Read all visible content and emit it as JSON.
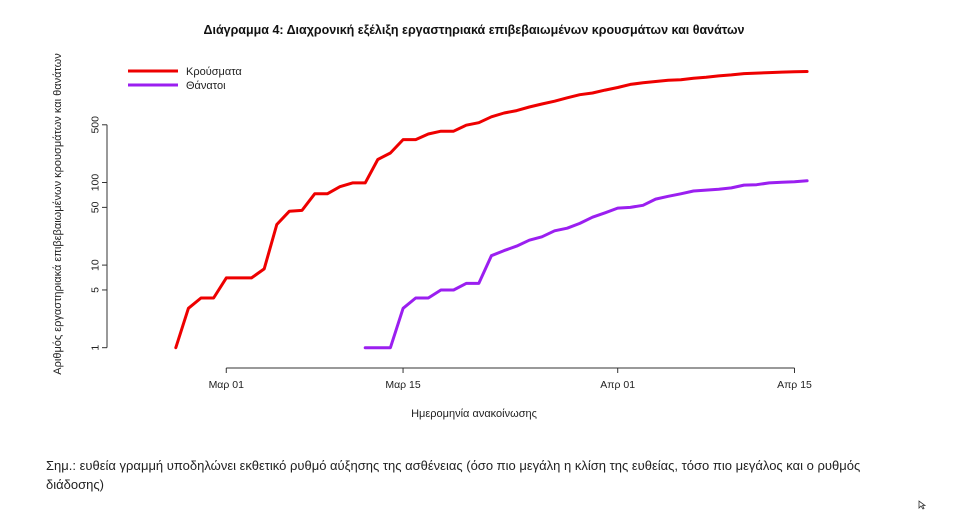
{
  "chart_data": {
    "type": "line",
    "title": "Διάγραμμα 4: Διαχρονική εξέλιξη εργαστηριακά επιβεβαιωμένων κρουσμάτων και θανάτων",
    "xlabel": "Ημερομηνία ανακοίνωσης",
    "ylabel": "Αριθμός εργαστηριακά επιβεβαιωμένων κρουσμάτων και θανάτων",
    "y_scale": "log",
    "ylim": [
      0.6,
      3500
    ],
    "xlim": [
      "2020-02-20",
      "2020-04-19"
    ],
    "x_ticks": [
      {
        "date": "2020-03-01",
        "label": "Μαρ 01"
      },
      {
        "date": "2020-03-15",
        "label": "Μαρ 15"
      },
      {
        "date": "2020-04-01",
        "label": "Απρ 01"
      },
      {
        "date": "2020-04-15",
        "label": "Απρ 15"
      }
    ],
    "y_ticks": [
      {
        "value": 1,
        "label": "1"
      },
      {
        "value": 5,
        "label": "5"
      },
      {
        "value": 10,
        "label": "10"
      },
      {
        "value": 50,
        "label": "50"
      },
      {
        "value": 100,
        "label": "100"
      },
      {
        "value": 500,
        "label": "500"
      }
    ],
    "grid": false,
    "legend_position": "top-left",
    "series": [
      {
        "name": "Κρούσματα",
        "color": "#ee0000",
        "x": [
          "2020-02-26",
          "2020-02-27",
          "2020-02-28",
          "2020-02-29",
          "2020-03-01",
          "2020-03-02",
          "2020-03-03",
          "2020-03-04",
          "2020-03-05",
          "2020-03-06",
          "2020-03-07",
          "2020-03-08",
          "2020-03-09",
          "2020-03-10",
          "2020-03-11",
          "2020-03-12",
          "2020-03-13",
          "2020-03-14",
          "2020-03-15",
          "2020-03-16",
          "2020-03-17",
          "2020-03-18",
          "2020-03-19",
          "2020-03-20",
          "2020-03-21",
          "2020-03-22",
          "2020-03-23",
          "2020-03-24",
          "2020-03-25",
          "2020-03-26",
          "2020-03-27",
          "2020-03-28",
          "2020-03-29",
          "2020-03-30",
          "2020-03-31",
          "2020-04-01",
          "2020-04-02",
          "2020-04-03",
          "2020-04-04",
          "2020-04-05",
          "2020-04-06",
          "2020-04-07",
          "2020-04-08",
          "2020-04-09",
          "2020-04-10",
          "2020-04-11",
          "2020-04-12",
          "2020-04-13",
          "2020-04-14",
          "2020-04-15",
          "2020-04-16"
        ],
        "values": [
          1,
          3,
          4,
          4,
          7,
          7,
          7,
          9,
          31,
          45,
          46,
          73,
          73,
          89,
          99,
          99,
          190,
          228,
          331,
          331,
          387,
          418,
          418,
          495,
          530,
          624,
          695,
          743,
          821,
          892,
          966,
          1061,
          1156,
          1212,
          1314,
          1415,
          1544,
          1613,
          1673,
          1735,
          1755,
          1832,
          1884,
          1955,
          2011,
          2081,
          2114,
          2145,
          2170,
          2192,
          2207
        ]
      },
      {
        "name": "Θάνατοι",
        "color": "#9b1ff0",
        "x": [
          "2020-03-12",
          "2020-03-13",
          "2020-03-14",
          "2020-03-15",
          "2020-03-16",
          "2020-03-17",
          "2020-03-18",
          "2020-03-19",
          "2020-03-20",
          "2020-03-21",
          "2020-03-22",
          "2020-03-23",
          "2020-03-24",
          "2020-03-25",
          "2020-03-26",
          "2020-03-27",
          "2020-03-28",
          "2020-03-29",
          "2020-03-30",
          "2020-03-31",
          "2020-04-01",
          "2020-04-02",
          "2020-04-03",
          "2020-04-04",
          "2020-04-05",
          "2020-04-06",
          "2020-04-07",
          "2020-04-08",
          "2020-04-09",
          "2020-04-10",
          "2020-04-11",
          "2020-04-12",
          "2020-04-13",
          "2020-04-14",
          "2020-04-15",
          "2020-04-16"
        ],
        "values": [
          1,
          1,
          1,
          3,
          4,
          4,
          5,
          5,
          6,
          6,
          13,
          15,
          17,
          20,
          22,
          26,
          28,
          32,
          38,
          43,
          49,
          50,
          53,
          63,
          68,
          73,
          79,
          81,
          83,
          86,
          93,
          94,
          99,
          101,
          102,
          105
        ]
      }
    ]
  },
  "footnote": "Σημ.: ευθεία γραμμή υποδηλώνει εκθετικό ρυθμό αύξησης της ασθένειας (όσο πιο μεγάλη η κλίση της ευθείας, τόσο πιο μεγάλος και ο ρυθμός διάδοσης)"
}
